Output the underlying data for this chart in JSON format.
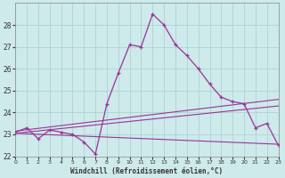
{
  "xlabel": "Windchill (Refroidissement éolien,°C)",
  "background_color": "#ceeaea",
  "grid_color": "#acd4d4",
  "line_color": "#993399",
  "xlim": [
    0,
    23
  ],
  "ylim": [
    22,
    29
  ],
  "yticks": [
    22,
    23,
    24,
    25,
    26,
    27,
    28
  ],
  "xticks": [
    0,
    1,
    2,
    3,
    4,
    5,
    6,
    7,
    8,
    9,
    10,
    11,
    12,
    13,
    14,
    15,
    16,
    17,
    18,
    19,
    20,
    21,
    22,
    23
  ],
  "hours": [
    0,
    1,
    2,
    3,
    4,
    5,
    6,
    7,
    8,
    9,
    10,
    11,
    12,
    13,
    14,
    15,
    16,
    17,
    18,
    19,
    20,
    21,
    22,
    23
  ],
  "temp_curve": [
    23.1,
    23.3,
    22.8,
    23.2,
    23.1,
    23.0,
    22.65,
    22.1,
    24.4,
    25.8,
    27.1,
    27.0,
    28.5,
    28.0,
    27.1,
    26.6,
    26.0,
    25.3,
    24.7,
    24.5,
    24.4,
    23.3,
    23.5,
    22.5
  ],
  "trend1_x": [
    0,
    23
  ],
  "trend1_y": [
    23.05,
    24.3
  ],
  "trend2_x": [
    0,
    23
  ],
  "trend2_y": [
    23.15,
    24.6
  ],
  "trend3_x": [
    0,
    23
  ],
  "trend3_y": [
    23.05,
    22.55
  ]
}
